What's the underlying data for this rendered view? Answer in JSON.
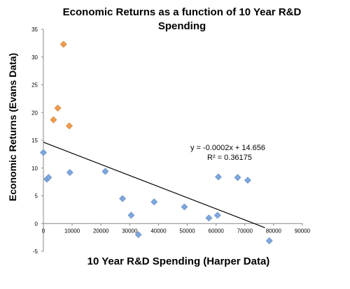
{
  "chart_data": {
    "type": "scatter",
    "title_line1": "Economic Returns as a function of 10 Year R&D",
    "title_line2": "Spending",
    "xlabel": "10 Year R&D Spending (Harper Data)",
    "ylabel": "Economic Returns  (Evans Data)",
    "xlim": [
      0,
      90000
    ],
    "ylim": [
      -5,
      35
    ],
    "x_ticks": [
      0,
      10000,
      20000,
      30000,
      40000,
      50000,
      60000,
      70000,
      80000,
      90000
    ],
    "y_ticks": [
      -5,
      0,
      5,
      10,
      15,
      20,
      25,
      30,
      35
    ],
    "grid": false,
    "series": [
      {
        "color": "#7EA7DC",
        "points": [
          [
            0,
            12.8
          ],
          [
            1200,
            8.0
          ],
          [
            1800,
            8.3
          ],
          [
            9200,
            9.2
          ],
          [
            21500,
            9.4
          ],
          [
            27500,
            4.5
          ],
          [
            30500,
            1.5
          ],
          [
            33000,
            -2.0
          ],
          [
            38500,
            3.9
          ],
          [
            49000,
            3.0
          ],
          [
            57500,
            1.0
          ],
          [
            60500,
            1.5
          ],
          [
            60800,
            8.4
          ],
          [
            67500,
            8.3
          ],
          [
            71000,
            7.8
          ],
          [
            78500,
            -3.1
          ]
        ]
      },
      {
        "color": "#F29B4B",
        "points": [
          [
            3500,
            18.7
          ],
          [
            5000,
            20.8
          ],
          [
            7000,
            32.3
          ],
          [
            9000,
            17.6
          ]
        ]
      }
    ],
    "trendline": {
      "slope": -0.0002,
      "intercept": 14.656,
      "x_range": [
        0,
        77000
      ],
      "color": "#000000"
    },
    "annotations": {
      "equation": "y = -0.0002x + 14.656",
      "r_squared": "R² = 0.36175"
    }
  }
}
